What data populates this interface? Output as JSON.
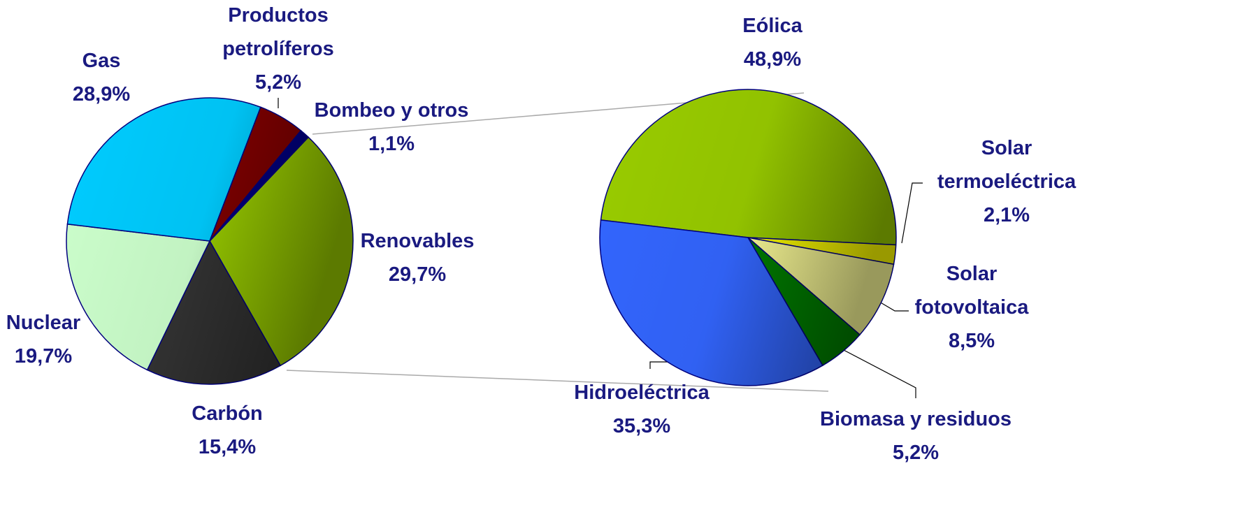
{
  "chart_data": [
    {
      "type": "pie",
      "categories": [
        "Renovables",
        "Carbón",
        "Nuclear",
        "Gas",
        "Productos petrolíferos",
        "Bombeo y otros"
      ],
      "values": [
        29.7,
        15.4,
        19.7,
        28.9,
        5.2,
        1.1
      ],
      "value_labels": [
        "29,7%",
        "15,4%",
        "19,7%",
        "28,9%",
        "5,2%",
        "1,1%"
      ],
      "colors": [
        "#99cc00",
        "#333333",
        "#ccffcc",
        "#00ccff",
        "#800000",
        "#000080"
      ]
    },
    {
      "type": "pie",
      "categories": [
        "Eólica",
        "Solar termoeléctrica",
        "Solar fotovoltaica",
        "Biomasa y residuos",
        "Hidroeléctrica"
      ],
      "values": [
        48.9,
        2.1,
        8.5,
        5.2,
        35.3
      ],
      "value_labels": [
        "48,9%",
        "2,1%",
        "8,5%",
        "5,2%",
        "35,3%"
      ],
      "colors": [
        "#99cc00",
        "#ffff00",
        "#ffff99",
        "#008000",
        "#3366ff"
      ]
    }
  ]
}
